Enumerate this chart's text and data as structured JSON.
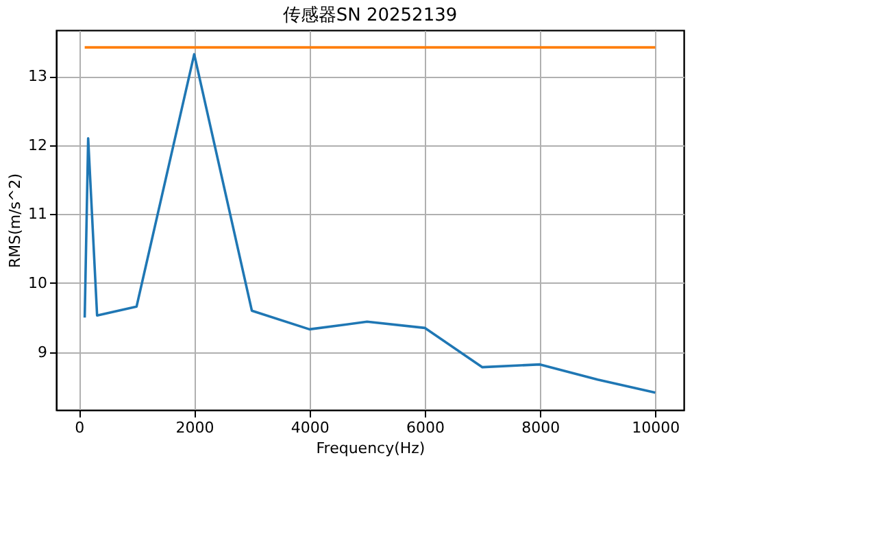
{
  "chart_data": {
    "type": "line",
    "title": "传感器SN 20252139",
    "xlabel": "Frequency(Hz)",
    "ylabel": "RMS(m/s^2)",
    "xlim": [
      -395,
      10495
    ],
    "xticks": [
      0,
      2000,
      4000,
      6000,
      8000,
      10000
    ],
    "ylim": [
      8.16,
      13.67
    ],
    "yticks": [
      9,
      10,
      11,
      12,
      13
    ],
    "grid": true,
    "legend": false,
    "series": [
      {
        "color": "#1f77b4",
        "x": [
          100,
          160,
          315,
          1000,
          2000,
          3000,
          4000,
          5000,
          6000,
          7000,
          8000,
          9000,
          10000
        ],
        "values": [
          9.5,
          12.1,
          9.53,
          9.66,
          13.32,
          9.6,
          9.33,
          9.44,
          9.35,
          8.78,
          8.82,
          8.6,
          8.41
        ]
      },
      {
        "color": "#ff7f0e",
        "x": [
          100,
          10000
        ],
        "values": [
          13.42,
          13.42
        ]
      }
    ]
  }
}
